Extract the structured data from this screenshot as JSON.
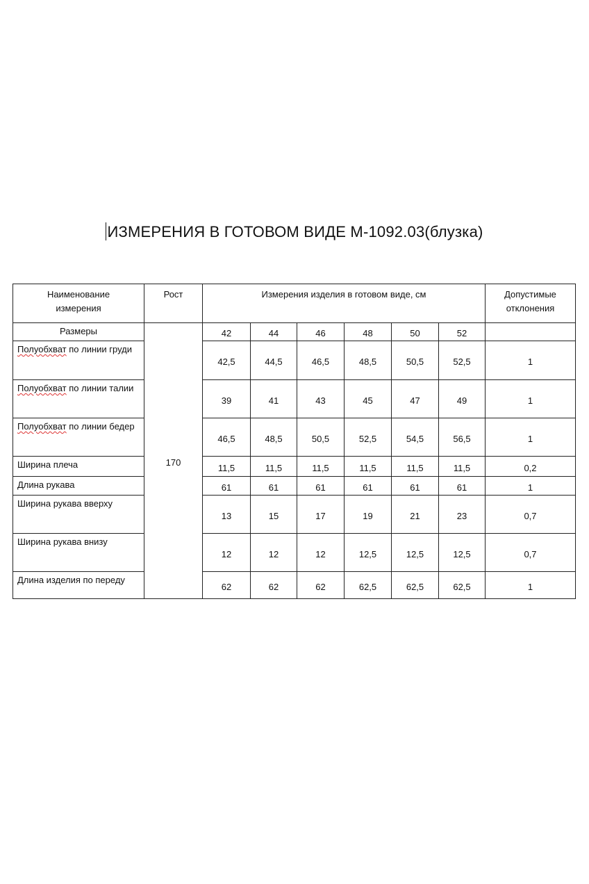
{
  "title": "ИЗМЕРЕНИЯ В ГОТОВОМ ВИДЕ М-1092.03(блузка)",
  "header": {
    "name": "Наименование измерения",
    "height": "Рост",
    "measurements": "Измерения изделия в готовом виде, см",
    "tolerance": "Допустимые отклонения",
    "sizes_label": "Размеры",
    "sizes": [
      "42",
      "44",
      "46",
      "48",
      "50",
      "52"
    ]
  },
  "height_value": "170",
  "rows": [
    {
      "name_sp": "Полуобхват",
      "name": " по линии груди",
      "values": [
        "42,5",
        "44,5",
        "46,5",
        "48,5",
        "50,5",
        "52,5"
      ],
      "tolerance": "1"
    },
    {
      "name_sp": "Полуобхват",
      "name": " по линии талии",
      "values": [
        "39",
        "41",
        "43",
        "45",
        "47",
        "49"
      ],
      "tolerance": "1"
    },
    {
      "name_sp": "Полуобхват",
      "name": " по линии бедер",
      "values": [
        "46,5",
        "48,5",
        "50,5",
        "52,5",
        "54,5",
        "56,5"
      ],
      "tolerance": "1"
    },
    {
      "name_sp": "",
      "name": "Ширина плеча",
      "values": [
        "11,5",
        "11,5",
        "11,5",
        "11,5",
        "11,5",
        "11,5"
      ],
      "tolerance": "0,2"
    },
    {
      "name_sp": "",
      "name": "Длина рукава",
      "values": [
        "61",
        "61",
        "61",
        "61",
        "61",
        "61"
      ],
      "tolerance": "1"
    },
    {
      "name_sp": "",
      "name": "Ширина рукава вверху",
      "values": [
        "13",
        "15",
        "17",
        "19",
        "21",
        "23"
      ],
      "tolerance": "0,7"
    },
    {
      "name_sp": "",
      "name": "Ширина рукава внизу",
      "values": [
        "12",
        "12",
        "12",
        "12,5",
        "12,5",
        "12,5"
      ],
      "tolerance": "0,7"
    },
    {
      "name_sp": "",
      "name": "Длина изделия по переду",
      "values": [
        "62",
        "62",
        "62",
        "62,5",
        "62,5",
        "62,5"
      ],
      "tolerance": "1"
    }
  ]
}
